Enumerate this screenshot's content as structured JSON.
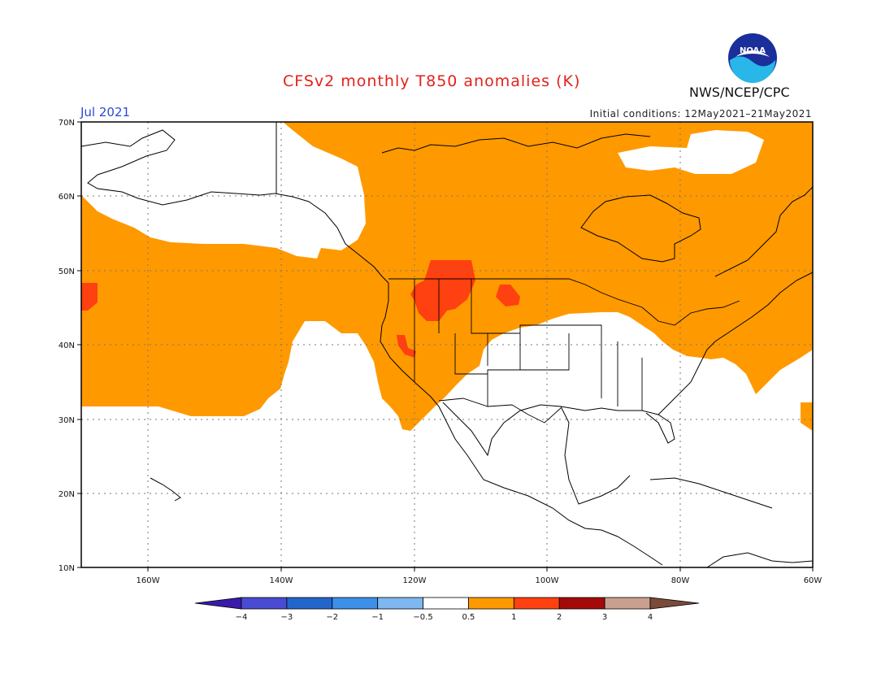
{
  "header": {
    "title": "CFSv2 monthly T850 anomalies (K)",
    "month": "Jul 2021",
    "initial_conditions": "Initial conditions: 12May2021–21May2021",
    "agency": "NWS/NCEP/CPC",
    "logo_text": "NOAA"
  },
  "axes": {
    "lat_labels": [
      "70N",
      "60N",
      "50N",
      "40N",
      "30N",
      "20N",
      "10N"
    ],
    "lon_labels": [
      "160W",
      "140W",
      "120W",
      "100W",
      "80W",
      "60W"
    ],
    "lat_range": [
      10,
      70
    ],
    "lon_range": [
      -172,
      -60
    ]
  },
  "colorbar": {
    "labels": [
      "−4",
      "−3",
      "−2",
      "−1",
      "−0.5",
      "0.5",
      "1",
      "2",
      "3",
      "4"
    ],
    "colors": [
      "#3a1aa8",
      "#4a4bd3",
      "#2266cc",
      "#3d8fe8",
      "#7fb7f0",
      "#ffffff",
      "#ff9900",
      "#ff4010",
      "#a50a0a",
      "#c9a090",
      "#7a4a3a"
    ]
  },
  "legend_colors": {
    "warm1": "#ff9900",
    "warm2": "#ff4010"
  }
}
